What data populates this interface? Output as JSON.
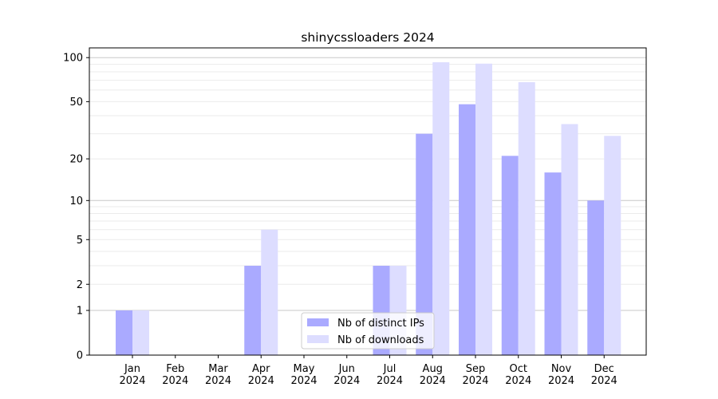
{
  "chart_data": {
    "type": "bar",
    "title": "shinycssloaders 2024",
    "xlabel": "",
    "ylabel": "",
    "yscale": "log(1+y)",
    "ylim": [
      0,
      110
    ],
    "yticks": [
      0,
      1,
      2,
      5,
      10,
      20,
      50,
      100
    ],
    "grid": "horizontal, major and minor",
    "legend_position": "bottom-center",
    "categories": [
      "Jan\n2024",
      "Feb\n2024",
      "Mar\n2024",
      "Apr\n2024",
      "May\n2024",
      "Jun\n2024",
      "Jul\n2024",
      "Aug\n2024",
      "Sep\n2024",
      "Oct\n2024",
      "Nov\n2024",
      "Dec\n2024"
    ],
    "series": [
      {
        "name": "Nb of distinct IPs",
        "color": "#aaaaff",
        "values": [
          1,
          0,
          0,
          3,
          0,
          0,
          3,
          30,
          48,
          21,
          16,
          10
        ]
      },
      {
        "name": "Nb of downloads",
        "color": "#ddddff",
        "values": [
          1,
          0,
          0,
          6,
          0,
          0,
          3,
          93,
          91,
          68,
          35,
          29
        ]
      }
    ]
  }
}
